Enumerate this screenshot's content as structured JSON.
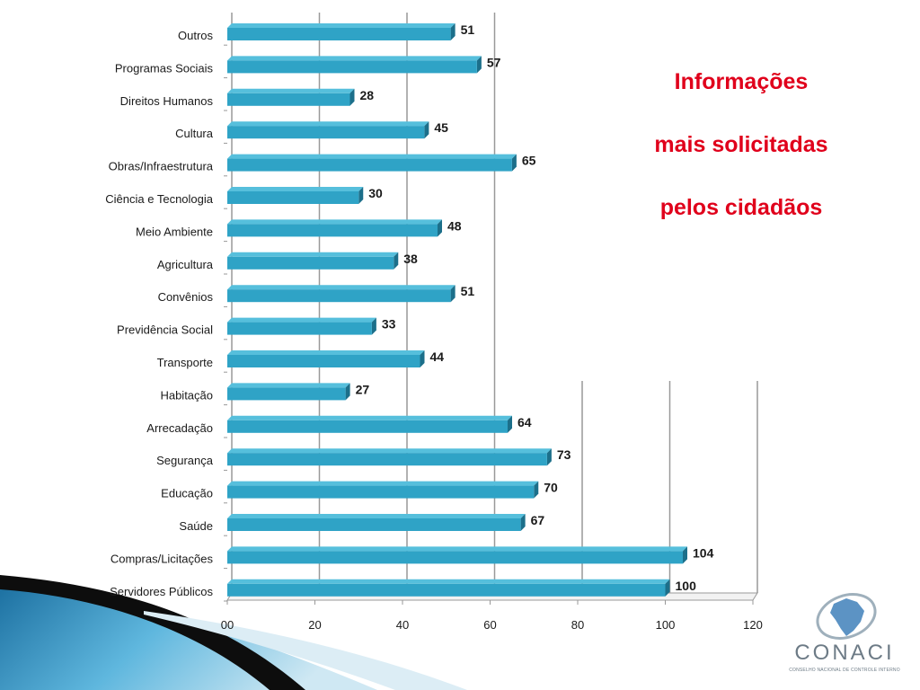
{
  "slide": {
    "title_lines": [
      "Informações",
      "mais solicitadas",
      "pelos cidadãos"
    ],
    "logo": {
      "text": "CONACI",
      "subtitle": "CONSELHO NACIONAL DE CONTROLE INTERNO",
      "icon": "brazil-map-orbit-icon"
    }
  },
  "colors": {
    "bar": "#2fa3c6",
    "bar_top": "#56bfdc",
    "bar_side": "#1c6f8a",
    "title": "#e0001b",
    "gridline": "#999999"
  },
  "chart_data": {
    "type": "bar",
    "orientation": "horizontal",
    "style": "3d",
    "title": "",
    "xlabel": "",
    "ylabel": "",
    "categories": [
      "Outros",
      "Programas Sociais",
      "Direitos Humanos",
      "Cultura",
      "Obras/Infraestrutura",
      "Ciência e Tecnologia",
      "Meio Ambiente",
      "Agricultura",
      "Convênios",
      "Previdência Social",
      "Transporte",
      "Habitação",
      "Arrecadação",
      "Segurança",
      "Educação",
      "Saúde",
      "Compras/Licitações",
      "Servidores Públicos"
    ],
    "values": [
      51,
      57,
      28,
      45,
      65,
      30,
      48,
      38,
      51,
      33,
      44,
      27,
      64,
      73,
      70,
      67,
      104,
      100
    ],
    "xlim": [
      0,
      120
    ],
    "xticks": [
      0,
      20,
      40,
      60,
      80,
      100,
      120
    ],
    "xtick_labels": [
      "00",
      "20",
      "40",
      "60",
      "80",
      "100",
      "120"
    ],
    "grid": true,
    "legend": "none"
  }
}
